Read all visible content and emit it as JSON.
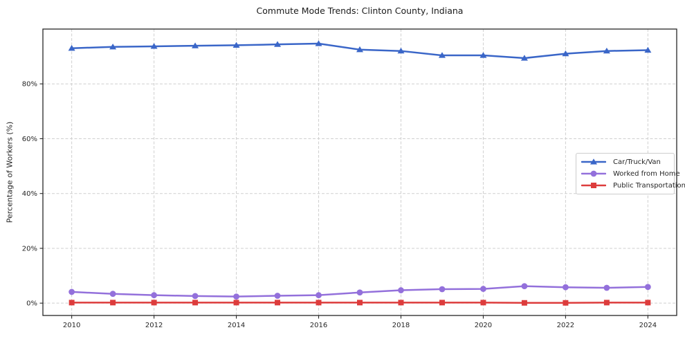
{
  "chart_data": {
    "type": "line",
    "title": "Commute Mode Trends: Clinton County, Indiana",
    "xlabel": "",
    "ylabel": "Percentage of Workers (%)",
    "x": [
      2010,
      2011,
      2012,
      2013,
      2014,
      2015,
      2016,
      2017,
      2018,
      2019,
      2020,
      2021,
      2022,
      2023,
      2024
    ],
    "series": [
      {
        "name": "Car/Truck/Van",
        "color": "#3a66c8",
        "marker": "triangle",
        "values": [
          93.0,
          93.5,
          93.7,
          93.9,
          94.1,
          94.4,
          94.7,
          92.5,
          92.0,
          90.4,
          90.4,
          89.4,
          91.0,
          92.0,
          92.3
        ]
      },
      {
        "name": "Worked from Home",
        "color": "#9370db",
        "marker": "circle",
        "values": [
          4.1,
          3.4,
          2.9,
          2.6,
          2.4,
          2.7,
          2.9,
          3.9,
          4.7,
          5.1,
          5.2,
          6.2,
          5.8,
          5.6,
          5.9
        ]
      },
      {
        "name": "Public Transportation",
        "color": "#dd3c3c",
        "marker": "square",
        "values": [
          0.2,
          0.2,
          0.2,
          0.2,
          0.2,
          0.2,
          0.2,
          0.2,
          0.2,
          0.2,
          0.2,
          0.1,
          0.1,
          0.2,
          0.2
        ]
      }
    ],
    "xticks": {
      "values": [
        2010,
        2012,
        2014,
        2016,
        2018,
        2020,
        2022,
        2024
      ],
      "labels": [
        "2010",
        "2012",
        "2014",
        "2016",
        "2018",
        "2020",
        "2022",
        "2024"
      ]
    },
    "yticks": {
      "values": [
        0,
        20,
        40,
        60,
        80
      ],
      "labels": [
        "0%",
        "20%",
        "40%",
        "60%",
        "80%"
      ]
    },
    "xlim": [
      2009.3,
      2024.7
    ],
    "ylim": [
      -4.5,
      100
    ],
    "grid": true,
    "legend_position": "center right",
    "style": {
      "grid_color": "#cfcfcf",
      "axis_color": "#262626",
      "tick_label_color": "#262626",
      "background": "#ffffff"
    }
  }
}
